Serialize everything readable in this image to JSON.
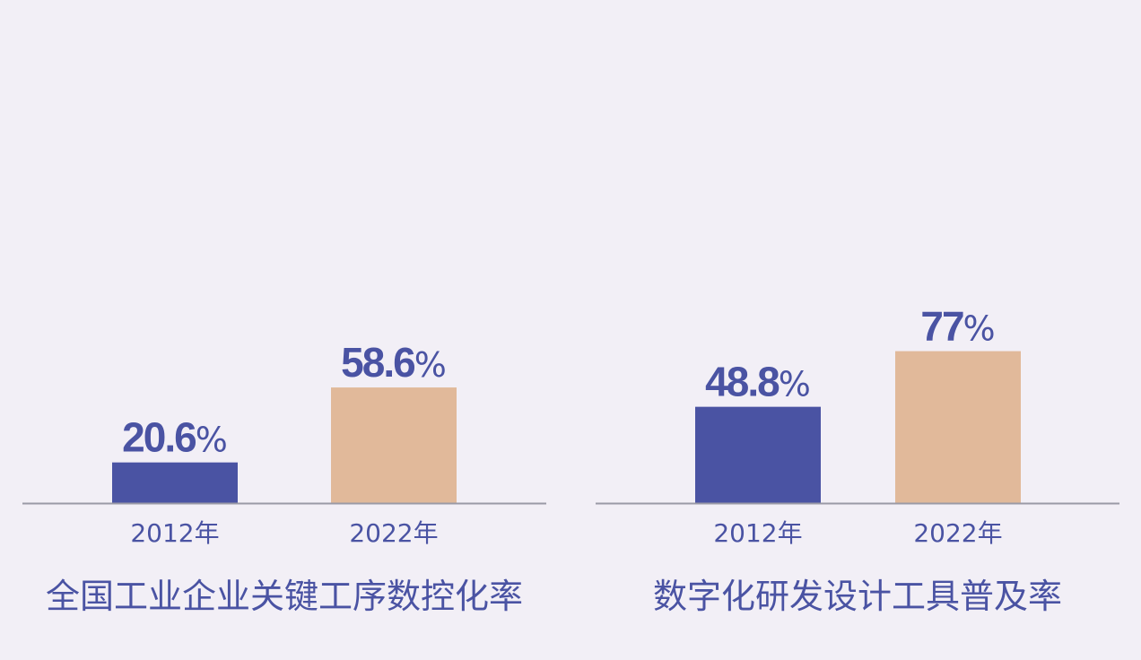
{
  "colors": {
    "background": "#f2eff6",
    "bar_2012": "#4a53a3",
    "bar_2022": "#e1b99a",
    "text": "#4a53a3",
    "axis": "#9a9aa6"
  },
  "chart_data": [
    {
      "type": "bar",
      "title": "全国工业企业关键工序数控化率",
      "categories": [
        "2012年",
        "2022年"
      ],
      "values": [
        20.6,
        58.6
      ],
      "value_labels": [
        "20.6",
        "58.6"
      ],
      "unit": "%",
      "ylim": [
        0,
        100
      ],
      "grid": false
    },
    {
      "type": "bar",
      "title": "数字化研发设计工具普及率",
      "categories": [
        "2012年",
        "2022年"
      ],
      "values": [
        48.8,
        77
      ],
      "value_labels": [
        "48.8",
        "77"
      ],
      "unit": "%",
      "ylim": [
        0,
        100
      ],
      "grid": false
    }
  ]
}
